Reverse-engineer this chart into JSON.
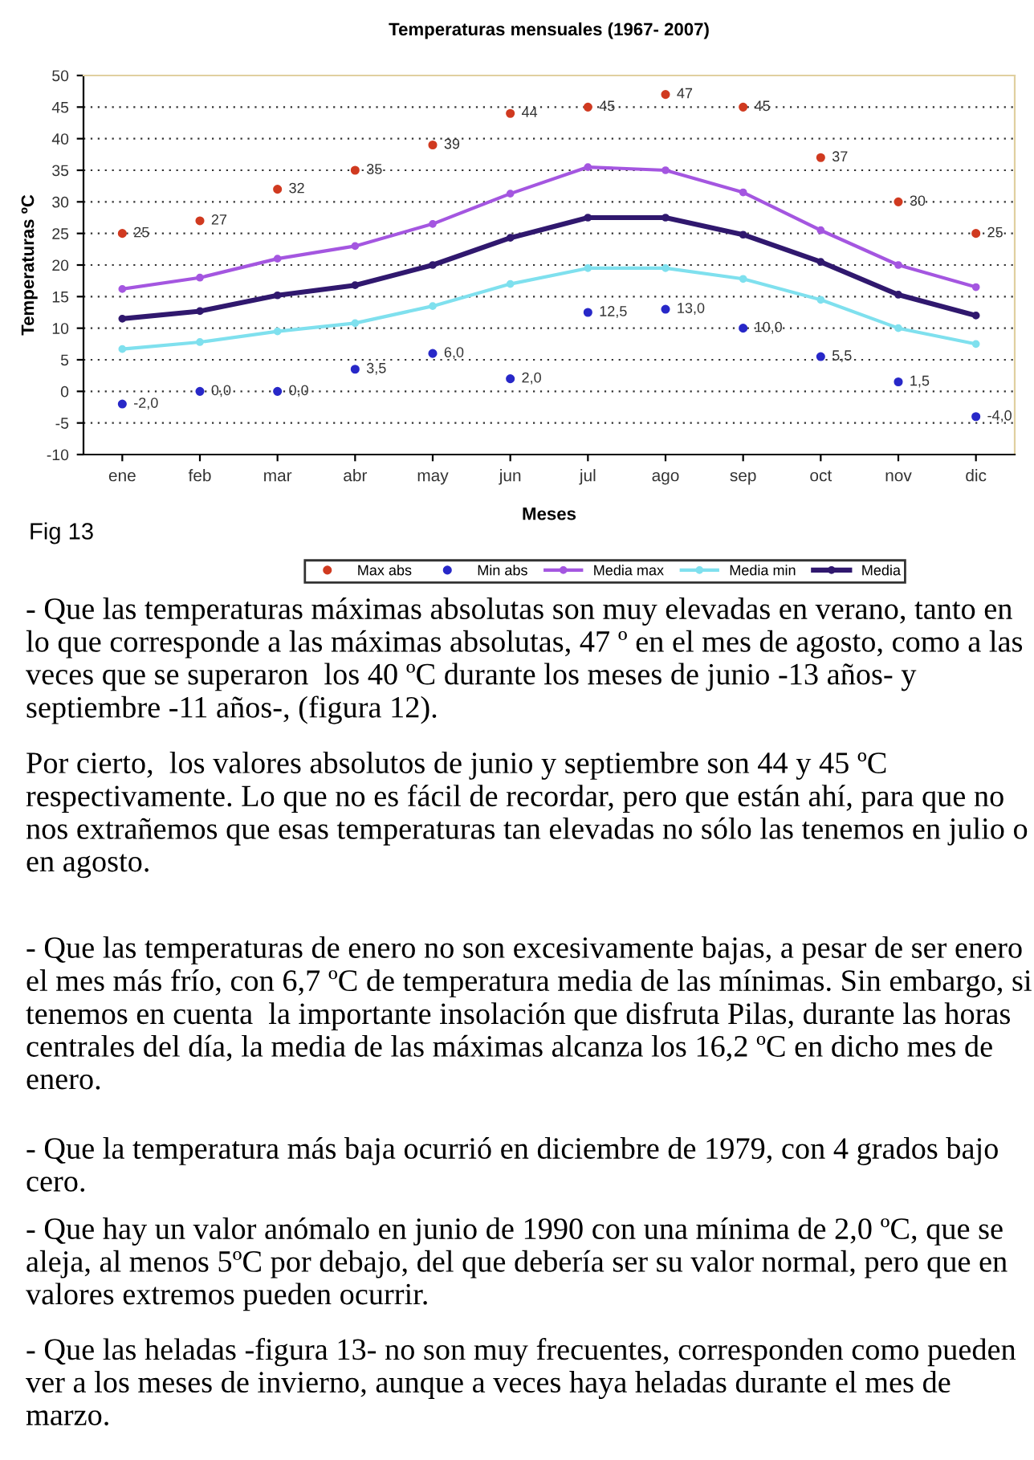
{
  "chart_data": {
    "type": "line",
    "title": "Temperaturas mensuales (1967- 2007)",
    "xlabel": "Meses",
    "ylabel": "Temperaturas ºC",
    "categories": [
      "ene",
      "feb",
      "mar",
      "abr",
      "may",
      "jun",
      "jul",
      "ago",
      "sep",
      "oct",
      "nov",
      "dic"
    ],
    "ylim": [
      -10,
      50
    ],
    "yticks": [
      -10,
      -5,
      0,
      5,
      10,
      15,
      20,
      25,
      30,
      35,
      40,
      45,
      50
    ],
    "grid": "y",
    "legend": "bottom",
    "marker": "circle",
    "series": [
      {
        "name": "Max abs",
        "type": "scatter",
        "color": "#d03a20",
        "values": [
          25,
          27,
          32,
          35,
          39,
          44,
          45,
          47,
          45,
          37,
          30,
          25
        ],
        "value_labels": [
          "25",
          "27",
          "32",
          "35",
          "39",
          "44",
          "45",
          "47",
          "45",
          "37",
          "30",
          "25"
        ]
      },
      {
        "name": "Min abs",
        "type": "scatter",
        "color": "#2828c8",
        "values": [
          -2.0,
          0.0,
          0.0,
          3.5,
          6.0,
          2.0,
          12.5,
          13.0,
          10.0,
          5.5,
          1.5,
          -4.0
        ],
        "value_labels": [
          "-2,0",
          "0,0",
          "0,0",
          "3,5",
          "6,0",
          "2,0",
          "12,5",
          "13,0",
          "10,0",
          "5,5",
          "1,5",
          "-4,0"
        ]
      },
      {
        "name": "Media max",
        "color": "#a456e0",
        "values": [
          16.2,
          18,
          21,
          23,
          26.5,
          31.3,
          35.5,
          35,
          31.5,
          25.5,
          20,
          16.5
        ]
      },
      {
        "name": "Media min",
        "color": "#7fe0ee",
        "values": [
          6.7,
          7.8,
          9.5,
          10.8,
          13.5,
          17,
          19.5,
          19.5,
          17.8,
          14.5,
          10,
          7.5
        ]
      },
      {
        "name": "Media",
        "color": "#30186e",
        "values": [
          11.5,
          12.7,
          15.2,
          16.8,
          20,
          24.3,
          27.5,
          27.5,
          24.8,
          20.5,
          15.3,
          12
        ]
      }
    ],
    "annotations": [
      "Fig 13",
      "- Que las temperaturas máximas absolutas son muy elevadas en verano, tanto en lo que corresponde a las máximas absolutas, 47 º en el mes de agosto, como a las veces que se superaron  los 40 ºC durante los meses de junio -13 años- y septiembre -11 años-, (figura 12).",
      "Por cierto,  los valores absolutos de junio y septiembre son 44 y 45 ºC respectivamente. Lo que no es fácil de recordar, pero que están ahí, para que no nos extrañemos que esas temperaturas tan elevadas no sólo las tenemos en julio o en agosto.",
      "- Que las temperaturas de enero no son excesivamente bajas, a pesar de ser enero el mes más frío, con 6,7 ºC de temperatura media de las mínimas. Sin embargo, si tenemos en cuenta  la importante insolación que disfruta Pilas, durante las horas centrales del día, la media de las máximas alcanza los 16,2 ºC en dicho mes de enero.",
      "- Que la temperatura más baja ocurrió en diciembre de 1979, con 4 grados bajo cero.",
      "- Que hay un valor anómalo en junio de 1990 con una mínima de 2,0 ºC, que se aleja, al menos 5ºC por debajo, del que debería ser su valor normal, pero que en valores extremos pueden ocurrir.",
      "- Que las heladas -figura 13- no son muy frecuentes, corresponden como pueden ver a los meses de invierno, aunque a veces haya heladas durante el mes de marzo."
    ]
  }
}
